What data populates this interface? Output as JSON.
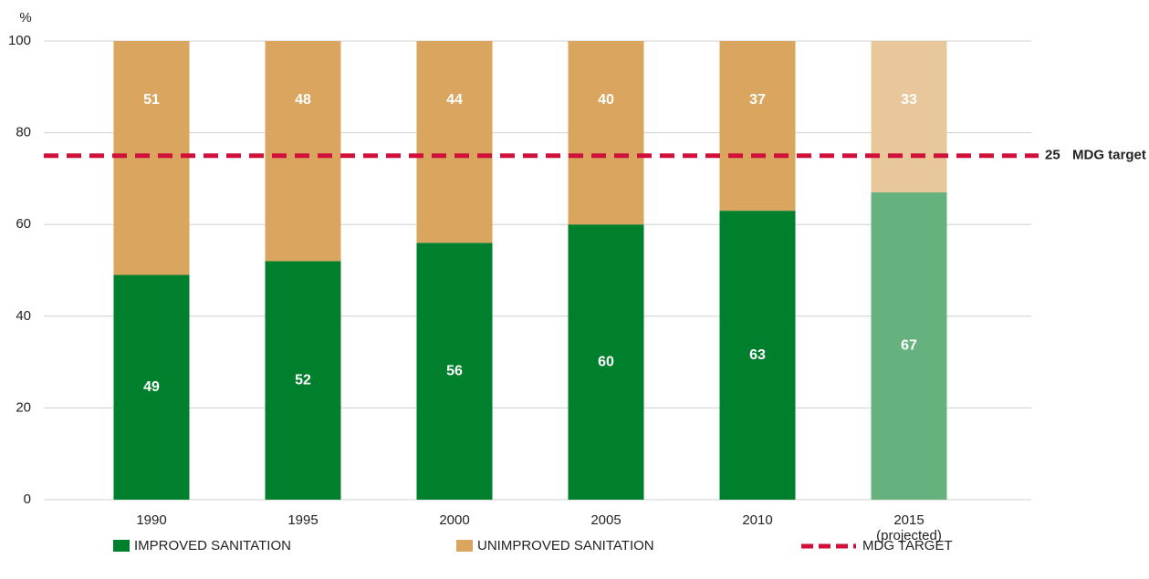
{
  "chart_data": {
    "type": "stacked_bar",
    "y_unit": "%",
    "categories": [
      "1990",
      "1995",
      "2000",
      "2005",
      "2010",
      "2015\n(projected)"
    ],
    "series": [
      {
        "name": "IMPROVED SANITATION",
        "color": "#007f2d",
        "point_colors": [
          "#007f2d",
          "#007f2d",
          "#007f2d",
          "#007f2d",
          "#007f2d",
          "#66b27f"
        ],
        "values": [
          49,
          52,
          56,
          60,
          63,
          67
        ]
      },
      {
        "name": "UNIMPROVED SANITATION",
        "color": "#d9a55f",
        "point_colors": [
          "#d9a55f",
          "#d9a55f",
          "#d9a55f",
          "#d9a55f",
          "#d9a55f",
          "#e8c89a"
        ],
        "values": [
          51,
          48,
          44,
          40,
          37,
          33
        ]
      }
    ],
    "target": {
      "name": "MDG TARGET",
      "label": "MDG target",
      "value": 25,
      "color": "#d0103a"
    },
    "ylim": [
      0,
      100
    ],
    "yticks": [
      0,
      20,
      40,
      60,
      80,
      100
    ],
    "grid": true
  }
}
